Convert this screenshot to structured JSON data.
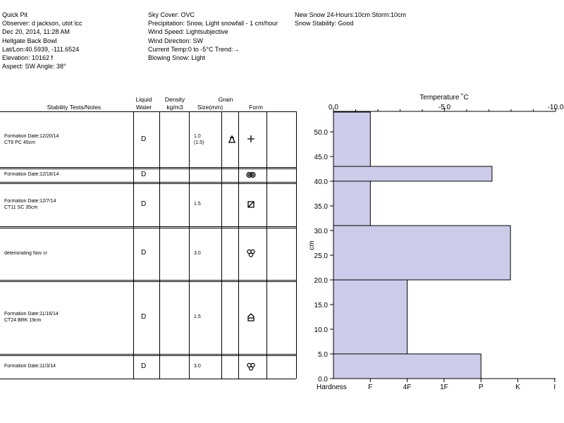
{
  "header": {
    "col1": [
      "Quick Pit",
      "Observer: d jackson, utot lcc",
      "Dec 20, 2014, 11:28 AM",
      "Hellgate Back Bowl",
      "Lat/Lon:40.5939, -111.6524",
      "Elevation: 10162 f",
      "Aspect: SW Angle: 38°"
    ],
    "col2": [
      "Sky Cover: OVC",
      "Precipitation: Snow, Light snowfall - 1 cm/hour",
      "Wind Speed: Lightsubjective",
      "Wind Direction: SW",
      "Current Temp:0 to -5°C Trend:→",
      "Blowing Snow: Light"
    ],
    "col3": [
      "New Snow 24-Hours:10cm Storm:10cm",
      "Snow Stability: Good"
    ]
  },
  "table": {
    "headers": {
      "notes": "Stability Tests/Notes",
      "liquid1": "Liquid",
      "liquid2": "Water",
      "density1": "Density",
      "density2": "kg/m3",
      "grain": "Grain",
      "size": "Size(mm)",
      "form": "Form"
    },
    "rows": [
      {
        "notes": [
          "Formation Date:12/20/14",
          "CT6 PC 45cm"
        ],
        "water": "D",
        "size": [
          "1.0",
          "(1.5)"
        ],
        "forms": [
          "precip-particles-icon",
          "precip-plus-icon"
        ]
      },
      {
        "notes": [
          "Formation Date:12/18/14"
        ],
        "water": "D",
        "size": [],
        "forms": [
          "rounded-grains-icon"
        ]
      },
      {
        "notes": [
          "Formation Date:12/7/14",
          "CT11  SC 35cm"
        ],
        "water": "D",
        "size": [
          "1.5"
        ],
        "forms": [
          "faceted-crystals-icon"
        ]
      },
      {
        "notes": [
          "deteriorating Nov cr"
        ],
        "water": "D",
        "size": [
          "3.0"
        ],
        "forms": [
          "melt-forms-icon"
        ]
      },
      {
        "notes": [
          "Formation Date:11/16/14",
          "CT24 BRK 19cm"
        ],
        "water": "D",
        "size": [
          "1.5"
        ],
        "forms": [
          "depth-hoar-icon"
        ]
      },
      {
        "notes": [
          "Formation Date:11/3/14"
        ],
        "water": "D",
        "size": [
          "3.0"
        ],
        "forms": [
          "melt-forms-icon"
        ]
      }
    ]
  },
  "chart_data": {
    "type": "bar",
    "orientation": "horizontal-step",
    "title": "Temperature ˚C",
    "ylabel": "cm",
    "xlabel": "Hardness",
    "ylim": [
      0,
      54
    ],
    "y_ticks": [
      "0.0",
      "5.0",
      "10.0",
      "15.0",
      "20.0",
      "25.0",
      "30.0",
      "35.0",
      "40.0",
      "45.0",
      "50.0"
    ],
    "temp_ticks": [
      "0.0",
      "-5.0",
      "-10.0"
    ],
    "hardness_ticks": [
      "F",
      "4F",
      "1F",
      "P",
      "K",
      "I"
    ],
    "layers": [
      {
        "bottom": 0.0,
        "top": 5.0,
        "hardness": "P",
        "hardness_value": 4.0
      },
      {
        "bottom": 5.0,
        "top": 20.0,
        "hardness": "4F",
        "hardness_value": 2.0
      },
      {
        "bottom": 20.0,
        "top": 31.0,
        "hardness": "P+",
        "hardness_value": 4.8
      },
      {
        "bottom": 31.0,
        "top": 40.0,
        "hardness": "F",
        "hardness_value": 1.0
      },
      {
        "bottom": 40.0,
        "top": 43.0,
        "hardness": "P-",
        "hardness_value": 4.3
      },
      {
        "bottom": 43.0,
        "top": 54.0,
        "hardness": "F",
        "hardness_value": 1.0
      }
    ],
    "fill_color": "#ccccea"
  }
}
